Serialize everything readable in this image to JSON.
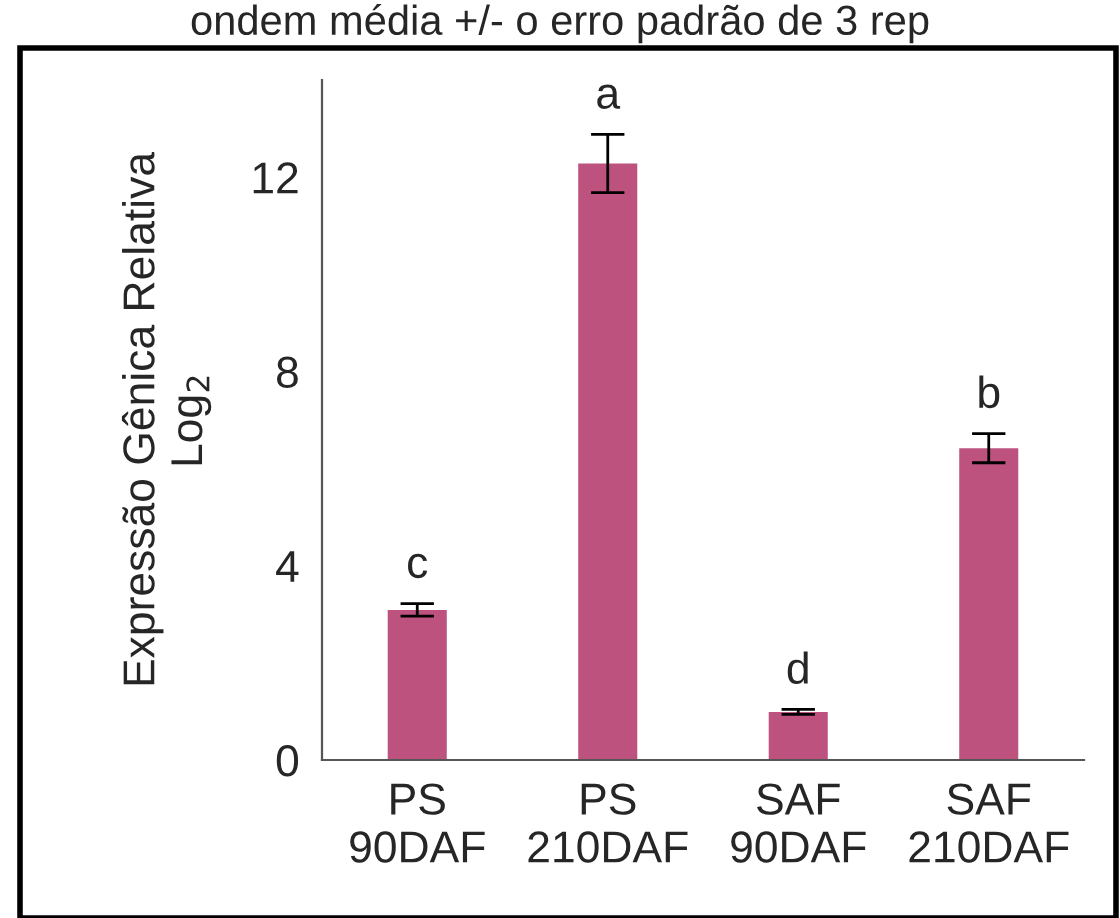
{
  "chart_data": {
    "type": "bar",
    "ylabel": "Expressão Gênica Relativa\nLog$_{2}$",
    "categories": [
      "PS\n90DAF",
      "PS\n210DAF",
      "SAF\n90DAF",
      "SAF\n210DAF"
    ],
    "values": [
      3.09,
      12.28,
      0.99,
      6.42
    ],
    "errors": [
      0.13,
      0.6,
      0.05,
      0.3
    ],
    "color": "#bd527f",
    "ylim": [
      0,
      14
    ],
    "yticks": [
      0,
      4,
      8,
      12
    ],
    "grid": false,
    "annotations": [
      "ondem média +/- o erro padrão de 3 rep",
      {
        "text": "c",
        "x": "PS\n90DAF",
        "y": 3.22
      },
      {
        "text": "a",
        "x": "PS\n210DAF",
        "y": 12.88
      },
      {
        "text": "d",
        "x": "SAF\n90DAF",
        "y": 1.04
      },
      {
        "text": "b",
        "x": "SAF\n210DAF",
        "y": 6.72
      }
    ]
  }
}
